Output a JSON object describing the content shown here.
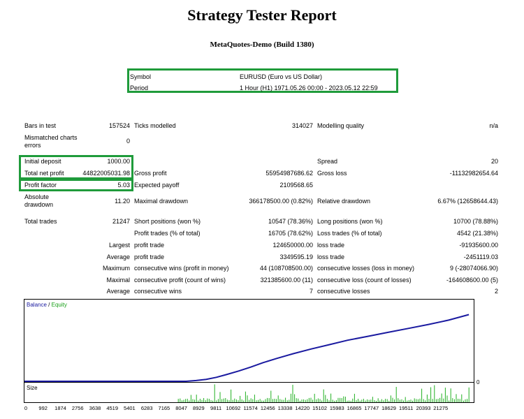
{
  "report": {
    "title": "Strategy Tester Report",
    "subtitle": "MetaQuotes-Demo (Build 1380)"
  },
  "header": {
    "symbol_label": "Symbol",
    "symbol_value": "EURUSD (Euro vs US Dollar)",
    "period_label": "Period",
    "period_value": "1 Hour (H1) 1971.05.26 00:00 - 2023.05.12 22:59"
  },
  "stats": {
    "bars_label": "Bars in test",
    "bars_value": "157524",
    "ticks_label": "Ticks modelled",
    "ticks_value": "314027",
    "quality_label": "Modelling quality",
    "quality_value": "n/a",
    "mismatch_label_1": "Mismatched charts",
    "mismatch_label_2": "errors",
    "mismatch_value": "0",
    "deposit_label": "Initial deposit",
    "deposit_value": "1000.00",
    "spread_label": "Spread",
    "spread_value": "20",
    "netprofit_label": "Total net profit",
    "netprofit_value": "44822005031.98",
    "grossprofit_label": "Gross profit",
    "grossprofit_value": "55954987686.62",
    "grossloss_label": "Gross loss",
    "grossloss_value": "-11132982654.64",
    "pf_label": "Profit factor",
    "pf_value": "5.03",
    "payoff_label": "Expected payoff",
    "payoff_value": "2109568.65",
    "absdd_label_1": "Absolute",
    "absdd_label_2": "drawdown",
    "absdd_value": "11.20",
    "maxdd_label": "Maximal drawdown",
    "maxdd_value": "366178500.00 (0.82%)",
    "reldd_label": "Relative drawdown",
    "reldd_value": "6.67% (12658644.43)",
    "trades_label": "Total trades",
    "trades_value": "21247",
    "short_label": "Short positions (won %)",
    "short_value": "10547 (78.36%)",
    "long_label": "Long positions (won %)",
    "long_value": "10700 (78.88%)",
    "ptrades_label": "Profit trades (% of total)",
    "ptrades_value": "16705 (78.62%)",
    "ltrades_label": "Loss trades (% of total)",
    "ltrades_value": "4542 (21.38%)",
    "largest_label": "Largest",
    "largest_pt_label": "profit trade",
    "largest_pt_value": "124650000.00",
    "largest_lt_label": "loss trade",
    "largest_lt_value": "-91935600.00",
    "average_label": "Average",
    "average_pt_label": "profit trade",
    "average_pt_value": "3349595.19",
    "average_lt_label": "loss trade",
    "average_lt_value": "-2451119.03",
    "maximum_label": "Maximum",
    "max_cw_label": "consecutive wins (profit in money)",
    "max_cw_value": "44 (108708500.00)",
    "max_cl_label": "consecutive losses (loss in money)",
    "max_cl_value": "9 (-28074066.90)",
    "maximal_label": "Maximal",
    "maximal_cp_label": "consecutive profit (count of wins)",
    "maximal_cp_value": "321385600.00 (11)",
    "maximal_cl_label": "consecutive loss (count of losses)",
    "maximal_cl_value": "-164608600.00 (5)",
    "avg2_label": "Average",
    "avg_cw_label": "consecutive wins",
    "avg_cw_value": "7",
    "avg_cl_label": "consecutive losses",
    "avg_cl_value": "2"
  },
  "chart_data": {
    "type": "line",
    "legend": [
      "Balance",
      "Equity"
    ],
    "legend_separator": "/",
    "colors": {
      "balance": "#1a1aa0",
      "equity": "#1aa01a",
      "size": "#22b022",
      "highlight": "#1f9b3b"
    },
    "y_right_label": "0",
    "size_label": "Size",
    "x_ticks": [
      "0",
      "992",
      "1874",
      "2756",
      "3638",
      "4519",
      "5401",
      "6283",
      "7165",
      "8047",
      "8929",
      "9811",
      "10692",
      "11574",
      "12456",
      "13338",
      "14220",
      "15102",
      "15983",
      "16865",
      "17747",
      "18629",
      "19511",
      "20393",
      "21275"
    ],
    "x_range": [
      0,
      22100
    ],
    "balance_curve": [
      [
        0,
        0
      ],
      [
        8000,
        0
      ],
      [
        8500,
        0.01
      ],
      [
        9000,
        0.025
      ],
      [
        9500,
        0.05
      ],
      [
        10000,
        0.085
      ],
      [
        10600,
        0.13
      ],
      [
        11200,
        0.18
      ],
      [
        11800,
        0.235
      ],
      [
        12500,
        0.29
      ],
      [
        13300,
        0.35
      ],
      [
        14200,
        0.41
      ],
      [
        15100,
        0.465
      ],
      [
        16000,
        0.52
      ],
      [
        17000,
        0.57
      ],
      [
        18000,
        0.62
      ],
      [
        19000,
        0.67
      ],
      [
        20000,
        0.72
      ],
      [
        21000,
        0.775
      ],
      [
        22000,
        0.845
      ]
    ]
  }
}
